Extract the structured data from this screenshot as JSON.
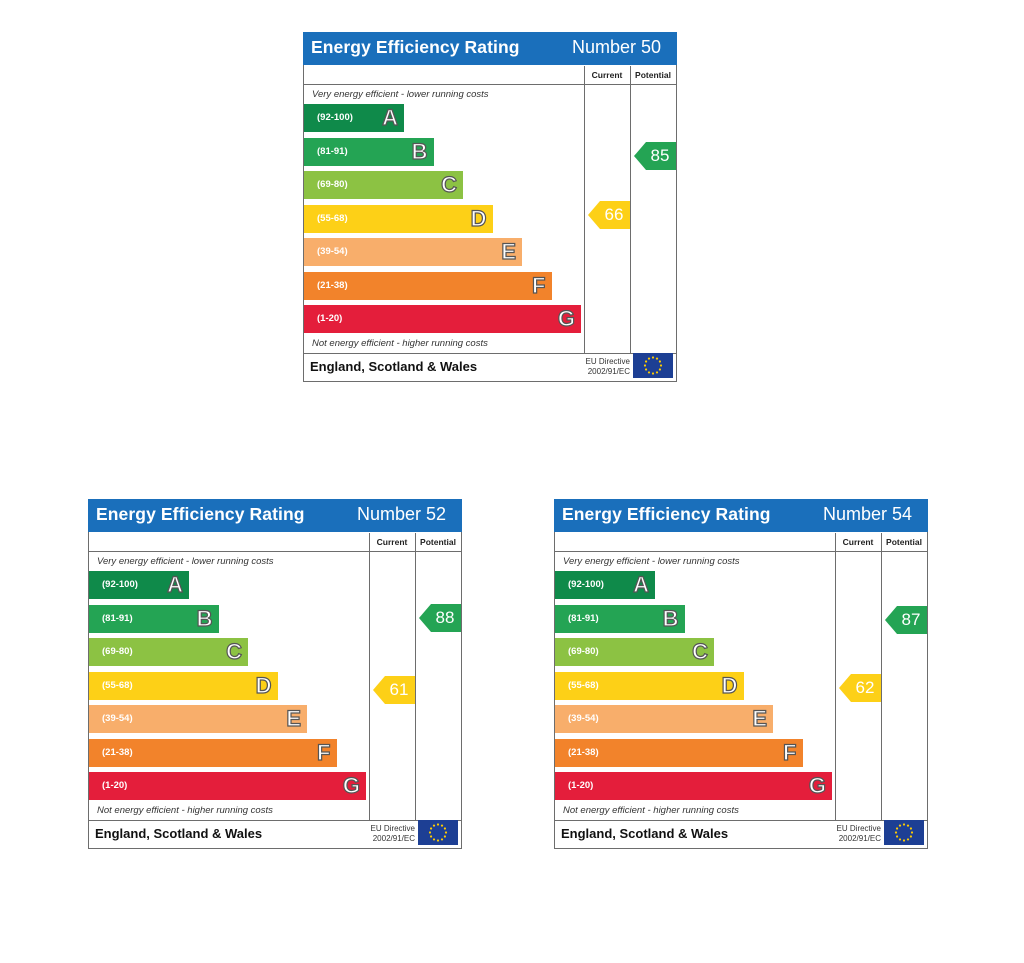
{
  "chart_data": [
    {
      "type": "bar",
      "title": "Energy Efficiency Rating",
      "subtitle": "Number 50",
      "column_headers": [
        "Current",
        "Potential"
      ],
      "top_note": "Very energy efficient - lower running costs",
      "bottom_note": "Not energy efficient - higher running costs",
      "footer": "England, Scotland & Wales",
      "directive": [
        "EU Directive",
        "2002/91/EC"
      ],
      "bands": [
        {
          "range": "(92-100)",
          "letter": "A",
          "color": "#0f8a4a"
        },
        {
          "range": "(81-91)",
          "letter": "B",
          "color": "#24a454"
        },
        {
          "range": "(69-80)",
          "letter": "C",
          "color": "#8cc243"
        },
        {
          "range": "(55-68)",
          "letter": "D",
          "color": "#fdd017"
        },
        {
          "range": "(39-54)",
          "letter": "E",
          "color": "#f8ae6b"
        },
        {
          "range": "(21-38)",
          "letter": "F",
          "color": "#f2832b"
        },
        {
          "range": "(1-20)",
          "letter": "G",
          "color": "#e41e3b"
        }
      ],
      "current": 66,
      "potential": 85
    },
    {
      "type": "bar",
      "title": "Energy Efficiency Rating",
      "subtitle": "Number 52",
      "column_headers": [
        "Current",
        "Potential"
      ],
      "top_note": "Very energy efficient - lower running costs",
      "bottom_note": "Not energy efficient - higher running costs",
      "footer": "England, Scotland & Wales",
      "directive": [
        "EU Directive",
        "2002/91/EC"
      ],
      "bands": [
        {
          "range": "(92-100)",
          "letter": "A",
          "color": "#0f8a4a"
        },
        {
          "range": "(81-91)",
          "letter": "B",
          "color": "#24a454"
        },
        {
          "range": "(69-80)",
          "letter": "C",
          "color": "#8cc243"
        },
        {
          "range": "(55-68)",
          "letter": "D",
          "color": "#fdd017"
        },
        {
          "range": "(39-54)",
          "letter": "E",
          "color": "#f8ae6b"
        },
        {
          "range": "(21-38)",
          "letter": "F",
          "color": "#f2832b"
        },
        {
          "range": "(1-20)",
          "letter": "G",
          "color": "#e41e3b"
        }
      ],
      "current": 61,
      "potential": 88
    },
    {
      "type": "bar",
      "title": "Energy Efficiency Rating",
      "subtitle": "Number 54",
      "column_headers": [
        "Current",
        "Potential"
      ],
      "top_note": "Very energy efficient - lower running costs",
      "bottom_note": "Not energy efficient - higher running costs",
      "footer": "England, Scotland & Wales",
      "directive": [
        "EU Directive",
        "2002/91/EC"
      ],
      "bands": [
        {
          "range": "(92-100)",
          "letter": "A",
          "color": "#0f8a4a"
        },
        {
          "range": "(81-91)",
          "letter": "B",
          "color": "#24a454"
        },
        {
          "range": "(69-80)",
          "letter": "C",
          "color": "#8cc243"
        },
        {
          "range": "(55-68)",
          "letter": "D",
          "color": "#fdd017"
        },
        {
          "range": "(39-54)",
          "letter": "E",
          "color": "#f8ae6b"
        },
        {
          "range": "(21-38)",
          "letter": "F",
          "color": "#f2832b"
        },
        {
          "range": "(1-20)",
          "letter": "G",
          "color": "#e41e3b"
        }
      ],
      "current": 62,
      "potential": 87
    }
  ]
}
